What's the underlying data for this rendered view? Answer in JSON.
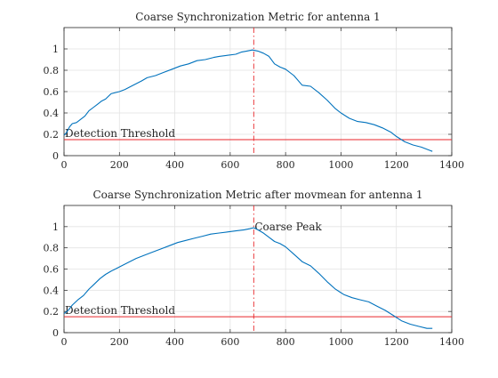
{
  "chart_data": [
    {
      "type": "line",
      "title": "Coarse Synchronization Metric for antenna 1",
      "xlabel": "",
      "ylabel": "",
      "xlim": [
        0,
        1400
      ],
      "ylim": [
        0,
        1.2
      ],
      "xticks": [
        0,
        200,
        400,
        600,
        800,
        1000,
        1200,
        1400
      ],
      "yticks": [
        0,
        0.2,
        0.4,
        0.6,
        0.8,
        1
      ],
      "ytick_labels": [
        "0",
        "0.2",
        "0.4",
        "0.6",
        "0.8",
        "1"
      ],
      "grid": true,
      "series": [
        {
          "color": "#0072bd",
          "x": [
            0,
            10,
            20,
            30,
            45,
            60,
            75,
            90,
            105,
            120,
            135,
            150,
            170,
            200,
            220,
            250,
            280,
            300,
            330,
            360,
            390,
            420,
            450,
            480,
            510,
            540,
            560,
            590,
            620,
            640,
            660,
            680,
            700,
            720,
            740,
            760,
            780,
            800,
            830,
            860,
            890,
            920,
            950,
            980,
            1000,
            1030,
            1060,
            1090,
            1120,
            1150,
            1180,
            1200,
            1230,
            1260,
            1290,
            1320,
            1330
          ],
          "y": [
            0.19,
            0.22,
            0.27,
            0.3,
            0.31,
            0.34,
            0.37,
            0.42,
            0.45,
            0.48,
            0.51,
            0.53,
            0.58,
            0.6,
            0.62,
            0.66,
            0.7,
            0.73,
            0.75,
            0.78,
            0.81,
            0.84,
            0.86,
            0.89,
            0.9,
            0.92,
            0.93,
            0.94,
            0.95,
            0.97,
            0.98,
            0.99,
            0.98,
            0.96,
            0.93,
            0.86,
            0.83,
            0.81,
            0.75,
            0.66,
            0.65,
            0.59,
            0.52,
            0.44,
            0.4,
            0.35,
            0.32,
            0.31,
            0.29,
            0.26,
            0.22,
            0.18,
            0.13,
            0.1,
            0.08,
            0.05,
            0.04
          ]
        }
      ],
      "threshold": {
        "y": 0.15,
        "label": "Detection Threshold",
        "color": "#e8262a"
      },
      "peak_marker": {
        "x": 685,
        "color": "#e8262a",
        "label": ""
      }
    },
    {
      "type": "line",
      "title": "Coarse Synchronization Metric after movmean for antenna 1",
      "xlabel": "",
      "ylabel": "",
      "xlim": [
        0,
        1400
      ],
      "ylim": [
        0,
        1.2
      ],
      "xticks": [
        0,
        200,
        400,
        600,
        800,
        1000,
        1200,
        1400
      ],
      "yticks": [
        0,
        0.2,
        0.4,
        0.6,
        0.8,
        1
      ],
      "ytick_labels": [
        "0",
        "0.2",
        "0.4",
        "0.6",
        "0.8",
        "1"
      ],
      "grid": true,
      "series": [
        {
          "color": "#0072bd",
          "x": [
            0,
            15,
            30,
            50,
            70,
            90,
            110,
            130,
            150,
            170,
            200,
            230,
            260,
            290,
            320,
            350,
            380,
            410,
            440,
            470,
            500,
            530,
            560,
            590,
            620,
            650,
            670,
            685,
            700,
            720,
            740,
            760,
            780,
            800,
            830,
            860,
            890,
            920,
            950,
            980,
            1010,
            1040,
            1070,
            1100,
            1130,
            1160,
            1190,
            1220,
            1250,
            1280,
            1310,
            1330
          ],
          "y": [
            0.18,
            0.21,
            0.26,
            0.31,
            0.35,
            0.41,
            0.46,
            0.51,
            0.55,
            0.58,
            0.62,
            0.66,
            0.7,
            0.73,
            0.76,
            0.79,
            0.82,
            0.85,
            0.87,
            0.89,
            0.91,
            0.93,
            0.94,
            0.95,
            0.96,
            0.97,
            0.98,
            0.99,
            0.97,
            0.94,
            0.9,
            0.86,
            0.84,
            0.81,
            0.74,
            0.67,
            0.63,
            0.56,
            0.48,
            0.41,
            0.36,
            0.33,
            0.31,
            0.29,
            0.25,
            0.21,
            0.16,
            0.11,
            0.08,
            0.06,
            0.04,
            0.04
          ]
        }
      ],
      "threshold": {
        "y": 0.15,
        "label": "Detection Threshold",
        "color": "#e8262a"
      },
      "peak_marker": {
        "x": 685,
        "color": "#e8262a",
        "label": "Coarse Peak"
      }
    }
  ]
}
